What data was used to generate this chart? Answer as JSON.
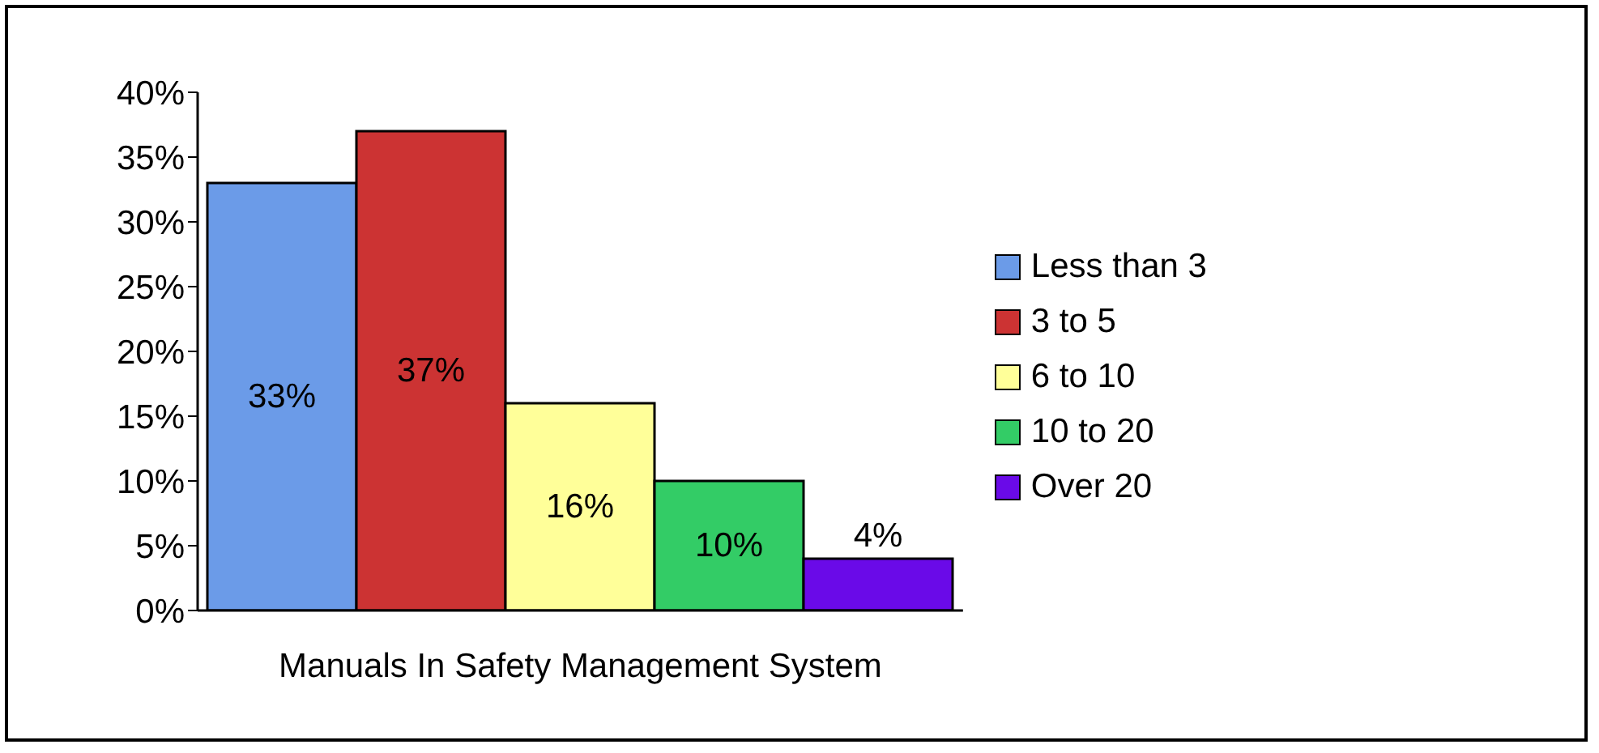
{
  "chart_data": {
    "type": "bar",
    "categories": [
      "Manuals In Safety Management System"
    ],
    "series": [
      {
        "name": "Less than 3",
        "color": "#6b9be8",
        "values": [
          33
        ],
        "value_labels": [
          "33%"
        ]
      },
      {
        "name": "3 to 5",
        "color": "#cc3333",
        "values": [
          37
        ],
        "value_labels": [
          "37%"
        ]
      },
      {
        "name": "6 to 10",
        "color": "#ffff99",
        "values": [
          16
        ],
        "value_labels": [
          "16%"
        ]
      },
      {
        "name": "10 to 20",
        "color": "#33cc66",
        "values": [
          10
        ],
        "value_labels": [
          "10%"
        ]
      },
      {
        "name": "Over 20",
        "color": "#6a0ae8",
        "values": [
          4
        ],
        "value_labels": [
          "4%"
        ]
      }
    ],
    "ylim": [
      0,
      40
    ],
    "yticks": [
      {
        "value": 0,
        "label": "0%"
      },
      {
        "value": 5,
        "label": "5%"
      },
      {
        "value": 10,
        "label": "10%"
      },
      {
        "value": 15,
        "label": "15%"
      },
      {
        "value": 20,
        "label": "20%"
      },
      {
        "value": 25,
        "label": "25%"
      },
      {
        "value": 30,
        "label": "30%"
      },
      {
        "value": 35,
        "label": "35%"
      },
      {
        "value": 40,
        "label": "40%"
      }
    ],
    "grid": false,
    "legend": "right"
  }
}
